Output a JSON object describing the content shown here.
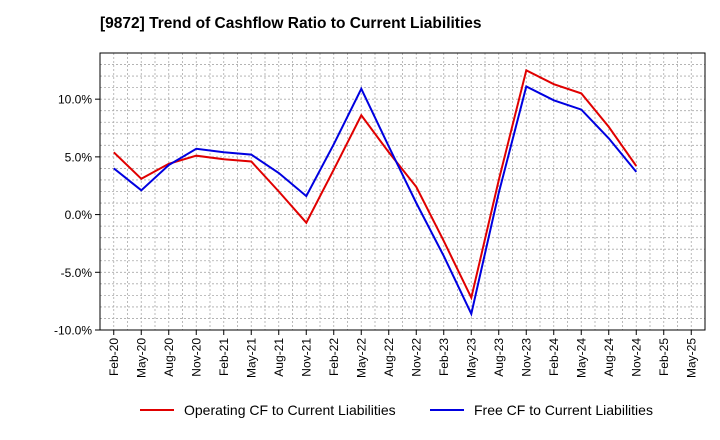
{
  "title": "[9872]  Trend of Cashflow Ratio to Current Liabilities",
  "colors": {
    "operating": "#e00000",
    "free": "#0000e0",
    "grid": "#aaaaaa",
    "axis": "#000000"
  },
  "chart_data": {
    "type": "line",
    "title": "[9872]  Trend of Cashflow Ratio to Current Liabilities",
    "xlabel": "",
    "ylabel": "",
    "categories": [
      "Feb-20",
      "May-20",
      "Aug-20",
      "Nov-20",
      "Feb-21",
      "May-21",
      "Aug-21",
      "Nov-21",
      "Feb-22",
      "May-22",
      "Aug-22",
      "Nov-22",
      "Feb-23",
      "May-23",
      "Aug-23",
      "Nov-23",
      "Feb-24",
      "May-24",
      "Aug-24",
      "Nov-24",
      "Feb-25",
      "May-25"
    ],
    "yticks": [
      "-10.0%",
      "-5.0%",
      "0.0%",
      "5.0%",
      "10.0%"
    ],
    "ytick_values": [
      -10,
      -5,
      0,
      5,
      10
    ],
    "ylim": [
      -10,
      14
    ],
    "grid": true,
    "legend_position": "bottom",
    "series": [
      {
        "name": "Operating CF to Current Liabilities",
        "color": "#e00000",
        "values": [
          5.4,
          3.1,
          4.4,
          5.1,
          4.8,
          4.6,
          2.0,
          -0.7,
          3.9,
          8.6,
          5.4,
          2.4,
          -2.3,
          -7.2,
          3.0,
          12.5,
          11.3,
          10.5,
          7.6,
          4.2,
          null,
          null
        ]
      },
      {
        "name": "Free CF to Current Liabilities",
        "color": "#0000e0",
        "values": [
          4.0,
          2.1,
          4.3,
          5.7,
          5.4,
          5.2,
          3.6,
          1.6,
          6.1,
          10.9,
          5.9,
          1.0,
          -3.6,
          -8.6,
          1.9,
          11.1,
          9.9,
          9.1,
          6.6,
          3.7,
          null,
          null
        ]
      }
    ]
  }
}
